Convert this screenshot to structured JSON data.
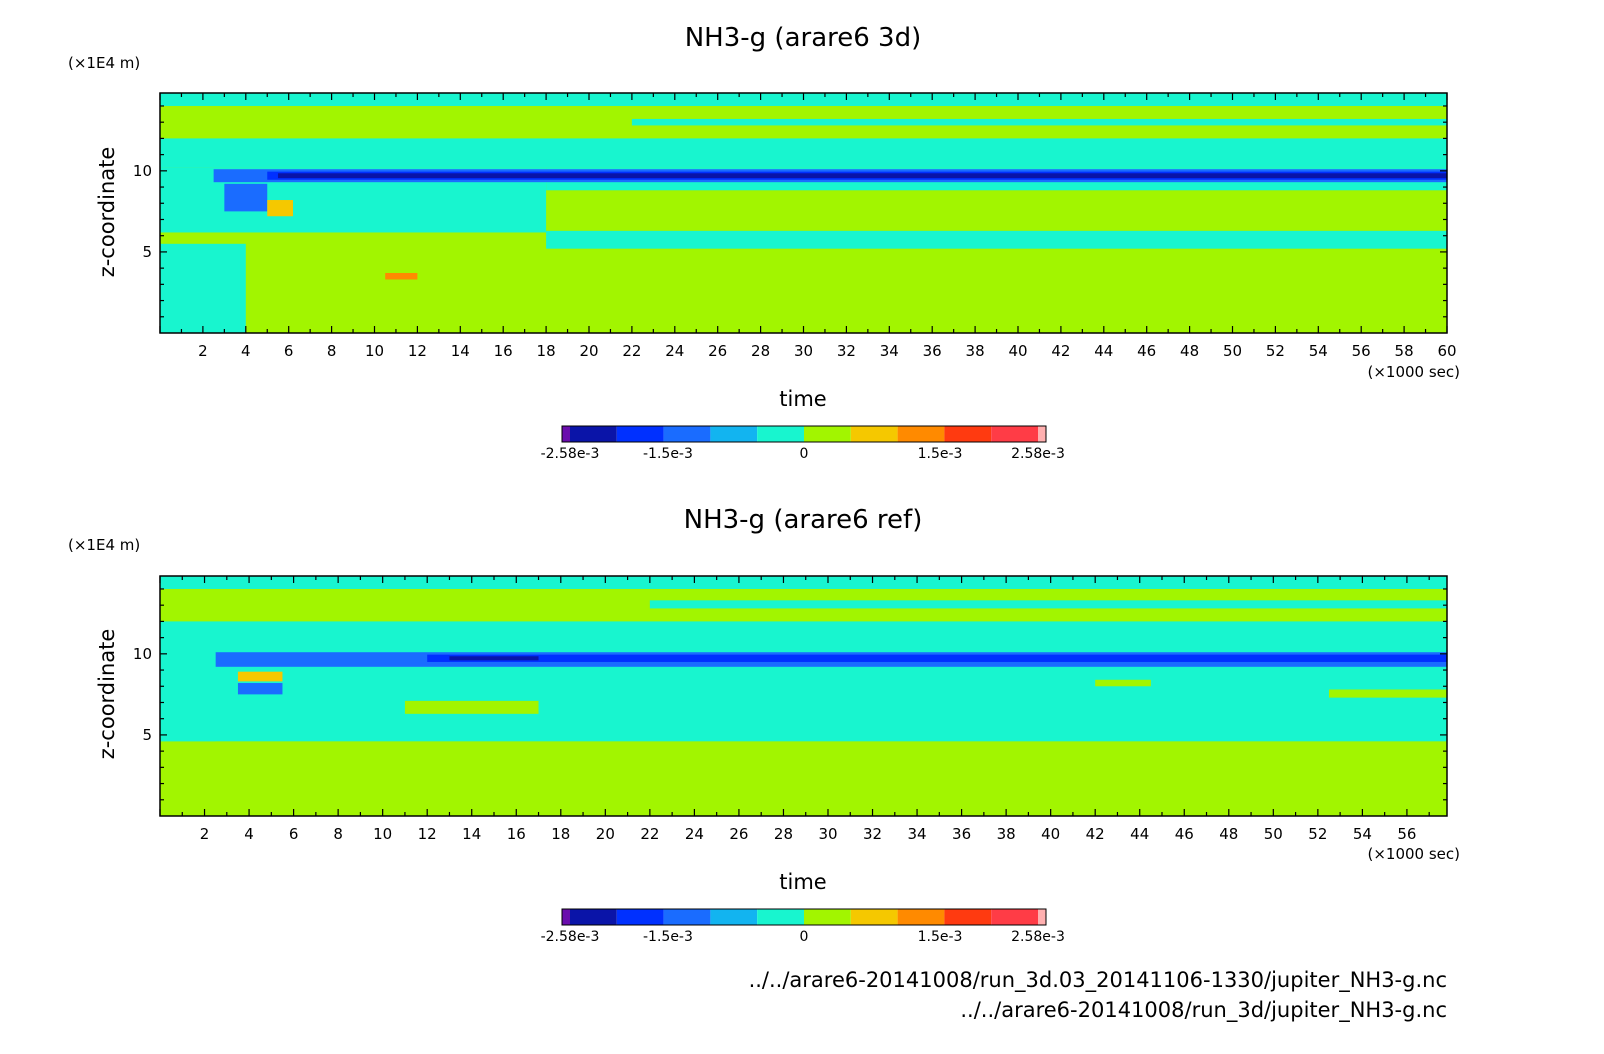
{
  "colorbar": {
    "colors": [
      "#6a0dad",
      "#0a14a8",
      "#0030ff",
      "#1a6cff",
      "#12b4f0",
      "#18f5cf",
      "#a2f500",
      "#f5c800",
      "#ff8a00",
      "#ff3a10",
      "#ff3c46",
      "#ffb0b0"
    ],
    "tick_labels": [
      "-2.58e-3",
      "-1.5e-3",
      "0",
      "1.5e-3",
      "2.58e-3"
    ]
  },
  "chart_data": [
    {
      "type": "heatmap",
      "title": "NH3-g (arare6 3d)",
      "xlabel": "time",
      "x_unit": "(×1000 sec)",
      "ylabel": "z-coordinate",
      "y_unit": "(×1E4 m)",
      "xlim": [
        0,
        60
      ],
      "ylim": [
        0,
        14.8
      ],
      "x_ticks": [
        2,
        4,
        6,
        8,
        10,
        12,
        14,
        16,
        18,
        20,
        22,
        24,
        26,
        28,
        30,
        32,
        34,
        36,
        38,
        40,
        42,
        44,
        46,
        48,
        50,
        52,
        54,
        56,
        58,
        60
      ],
      "y_ticks": [
        5,
        10
      ],
      "value_range": [
        -0.00258,
        0.00258
      ],
      "background": "#a2f500",
      "bands": [
        {
          "y0": 14.0,
          "y1": 14.8,
          "x0": 0,
          "x1": 60,
          "color": "#18f5cf"
        },
        {
          "y0": 12.8,
          "y1": 13.2,
          "x0": 22,
          "x1": 60,
          "color": "#18f5cf"
        },
        {
          "y0": 10.2,
          "y1": 12.0,
          "x0": 0,
          "x1": 60,
          "color": "#18f5cf"
        },
        {
          "y0": 6.2,
          "y1": 10.2,
          "x0": 0,
          "x1": 18,
          "color": "#18f5cf"
        },
        {
          "y0": 8.8,
          "y1": 10.2,
          "x0": 18,
          "x1": 60,
          "color": "#18f5cf"
        },
        {
          "y0": 5.2,
          "y1": 6.3,
          "x0": 18,
          "x1": 60,
          "color": "#18f5cf"
        },
        {
          "y0": 0,
          "y1": 5.5,
          "x0": 0,
          "x1": 4,
          "color": "#18f5cf"
        },
        {
          "y0": 9.3,
          "y1": 10.1,
          "x0": 2.5,
          "x1": 60,
          "color": "#1a6cff"
        },
        {
          "y0": 9.45,
          "y1": 9.95,
          "x0": 5,
          "x1": 60,
          "color": "#0030ff"
        },
        {
          "y0": 9.55,
          "y1": 9.85,
          "x0": 5.5,
          "x1": 60,
          "color": "#0a14a8"
        },
        {
          "y0": 7.5,
          "y1": 9.2,
          "x0": 3.0,
          "x1": 5.0,
          "color": "#1a6cff"
        },
        {
          "y0": 7.2,
          "y1": 8.2,
          "x0": 5.0,
          "x1": 6.2,
          "color": "#f5c800"
        },
        {
          "y0": 3.3,
          "y1": 3.7,
          "x0": 10.5,
          "x1": 12.0,
          "color": "#ff8a00"
        }
      ]
    },
    {
      "type": "heatmap",
      "title": "NH3-g (arare6 ref)",
      "xlabel": "time",
      "x_unit": "(×1000 sec)",
      "ylabel": "z-coordinate",
      "y_unit": "(×1E4 m)",
      "xlim": [
        0,
        57.8
      ],
      "ylim": [
        0,
        14.8
      ],
      "x_ticks": [
        2,
        4,
        6,
        8,
        10,
        12,
        14,
        16,
        18,
        20,
        22,
        24,
        26,
        28,
        30,
        32,
        34,
        36,
        38,
        40,
        42,
        44,
        46,
        48,
        50,
        52,
        54,
        56
      ],
      "y_ticks": [
        5,
        10
      ],
      "value_range": [
        -0.00258,
        0.00258
      ],
      "background": "#a2f500",
      "bands": [
        {
          "y0": 14.0,
          "y1": 14.8,
          "x0": 0,
          "x1": 57.8,
          "color": "#18f5cf"
        },
        {
          "y0": 12.8,
          "y1": 13.3,
          "x0": 22,
          "x1": 57.8,
          "color": "#18f5cf"
        },
        {
          "y0": 4.6,
          "y1": 12.0,
          "x0": 0,
          "x1": 57.8,
          "color": "#18f5cf"
        },
        {
          "y0": 6.3,
          "y1": 7.1,
          "x0": 11,
          "x1": 17,
          "color": "#a2f500"
        },
        {
          "y0": 7.3,
          "y1": 7.8,
          "x0": 52.5,
          "x1": 57.8,
          "color": "#a2f500"
        },
        {
          "y0": 8.0,
          "y1": 8.4,
          "x0": 42,
          "x1": 44.5,
          "color": "#a2f500"
        },
        {
          "y0": 0,
          "y1": 4.6,
          "x0": 2.5,
          "x1": 57.8,
          "color": "#a2f500"
        },
        {
          "y0": 9.2,
          "y1": 10.1,
          "x0": 2.5,
          "x1": 57.8,
          "color": "#1a6cff"
        },
        {
          "y0": 9.5,
          "y1": 9.95,
          "x0": 12,
          "x1": 57.8,
          "color": "#0030ff"
        },
        {
          "y0": 9.6,
          "y1": 9.85,
          "x0": 13,
          "x1": 17,
          "color": "#0a14a8"
        },
        {
          "y0": 8.3,
          "y1": 8.9,
          "x0": 3.5,
          "x1": 5.5,
          "color": "#f5c800"
        },
        {
          "y0": 7.5,
          "y1": 8.2,
          "x0": 3.5,
          "x1": 5.5,
          "color": "#1a6cff"
        }
      ]
    }
  ],
  "footer": {
    "path_1": "../../arare6-20141008/run_3d.03_20141106-1330/jupiter_NH3-g.nc",
    "path_2": "../../arare6-20141008/run_3d/jupiter_NH3-g.nc"
  }
}
